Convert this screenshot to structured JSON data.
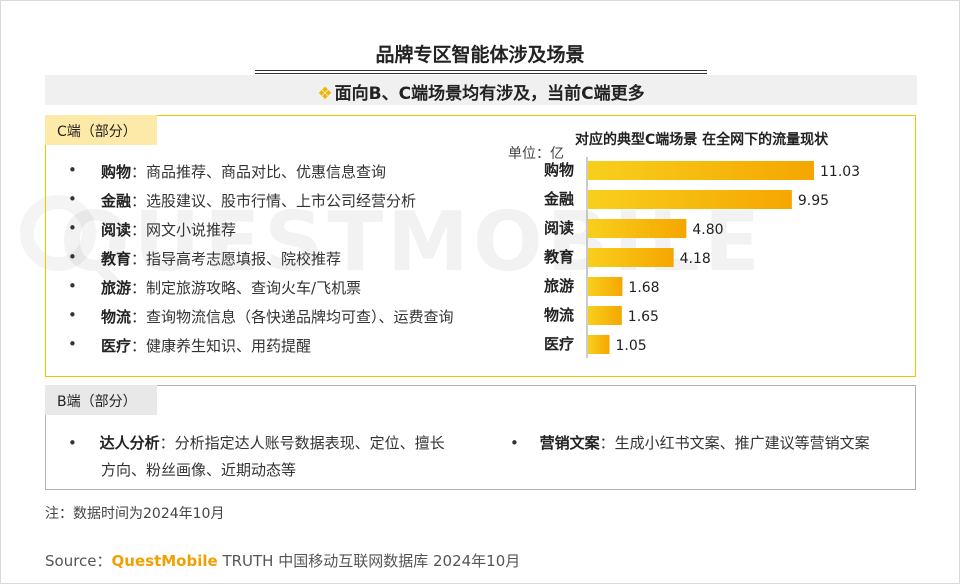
{
  "title": "品牌专区智能体涉及场景",
  "subtitle": {
    "icon": "diamond-icon",
    "text": "面向B、C端场景均有涉及，当前C端更多"
  },
  "c_section": {
    "tag": "C端（部分）",
    "items": [
      {
        "label": "购物",
        "desc": "：商品推荐、商品对比、优惠信息查询"
      },
      {
        "label": "金融",
        "desc": "：选股建议、股市行情、上市公司经营分析"
      },
      {
        "label": "阅读",
        "desc": "：网文小说推荐"
      },
      {
        "label": "教育",
        "desc": "：指导高考志愿填报、院校推荐"
      },
      {
        "label": "旅游",
        "desc": "：制定旅游攻略、查询火车/飞机票"
      },
      {
        "label": "物流",
        "desc": "：查询物流信息（各快递品牌均可查）、运费查询"
      },
      {
        "label": "医疗",
        "desc": "：健康养生知识、用药提醒"
      }
    ]
  },
  "watermark": "QUESTMOBILE",
  "chart_data": {
    "type": "bar",
    "orientation": "horizontal",
    "title": "对应的典型C端场景 在全网下的流量现状",
    "unit": "单位：亿",
    "categories": [
      "购物",
      "金融",
      "阅读",
      "教育",
      "旅游",
      "物流",
      "医疗"
    ],
    "values": [
      11.03,
      9.95,
      4.8,
      4.18,
      1.68,
      1.65,
      1.05
    ],
    "value_labels": [
      "11.03",
      "9.95",
      "4.80",
      "4.18",
      "1.68",
      "1.65",
      "1.05"
    ],
    "xlim": [
      0,
      11.03
    ],
    "grid": false,
    "colors": {
      "bar_start": "#f8cf1d",
      "bar_end": "#f5a600"
    }
  },
  "b_section": {
    "tag": "B端（部分）",
    "items": [
      {
        "label": "达人分析",
        "desc_line1": "：分析指定达人账号数据表现、定位、擅长",
        "desc_line2": "方向、粉丝画像、近期动态等"
      },
      {
        "label": "营销文案",
        "desc_line1": "：生成小红书文案、推广建议等营销文案"
      }
    ]
  },
  "note": "注：数据时间为2024年10月",
  "source": {
    "prefix": "Source：",
    "brand": "QuestMobile",
    "rest": " TRUTH 中国移动互联网数据库 2024年10月"
  },
  "colors": {
    "accent_yellow": "#f0c400",
    "tag_yellow_bg": "#fde9a8",
    "brand_orange": "#f0a000"
  }
}
